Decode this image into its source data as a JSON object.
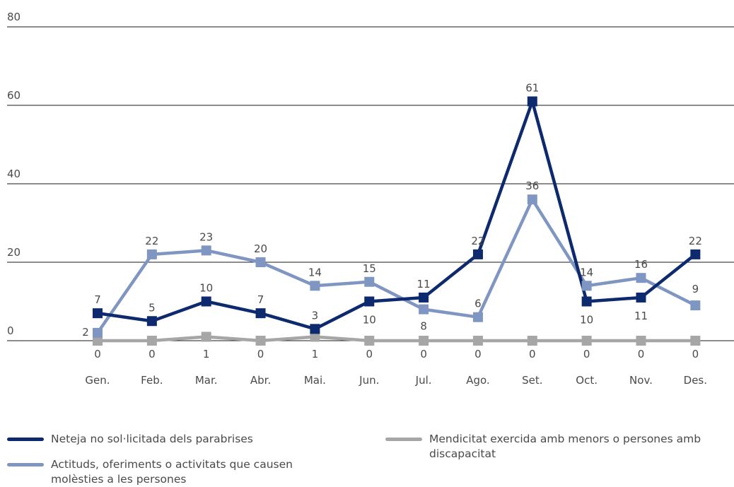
{
  "chart_data": {
    "type": "line",
    "categories": [
      "Gen.",
      "Feb.",
      "Mar.",
      "Abr.",
      "Mai.",
      "Jun.",
      "Jul.",
      "Ago.",
      "Set.",
      "Oct.",
      "Nov.",
      "Des."
    ],
    "y_ticks": [
      0,
      20,
      40,
      60,
      80
    ],
    "ylim": [
      0,
      80
    ],
    "grid": true,
    "legend_position": "bottom",
    "series": [
      {
        "name": "Neteja no sol·licitada dels parabrises",
        "color": "#0d2a6e",
        "values": [
          7,
          5,
          10,
          7,
          3,
          10,
          11,
          22,
          61,
          10,
          11,
          22
        ]
      },
      {
        "name": "Actituds, oferiments o activitats que causen molèsties a les persones",
        "color": "#8096c2",
        "values": [
          2,
          22,
          23,
          20,
          14,
          15,
          8,
          6,
          36,
          14,
          16,
          9
        ]
      },
      {
        "name": "Mendicitat exercida amb menors o persones amb discapacitat",
        "color": "#a6a6a6",
        "values": [
          0,
          0,
          1,
          0,
          1,
          0,
          0,
          0,
          0,
          0,
          0,
          0
        ]
      }
    ]
  }
}
